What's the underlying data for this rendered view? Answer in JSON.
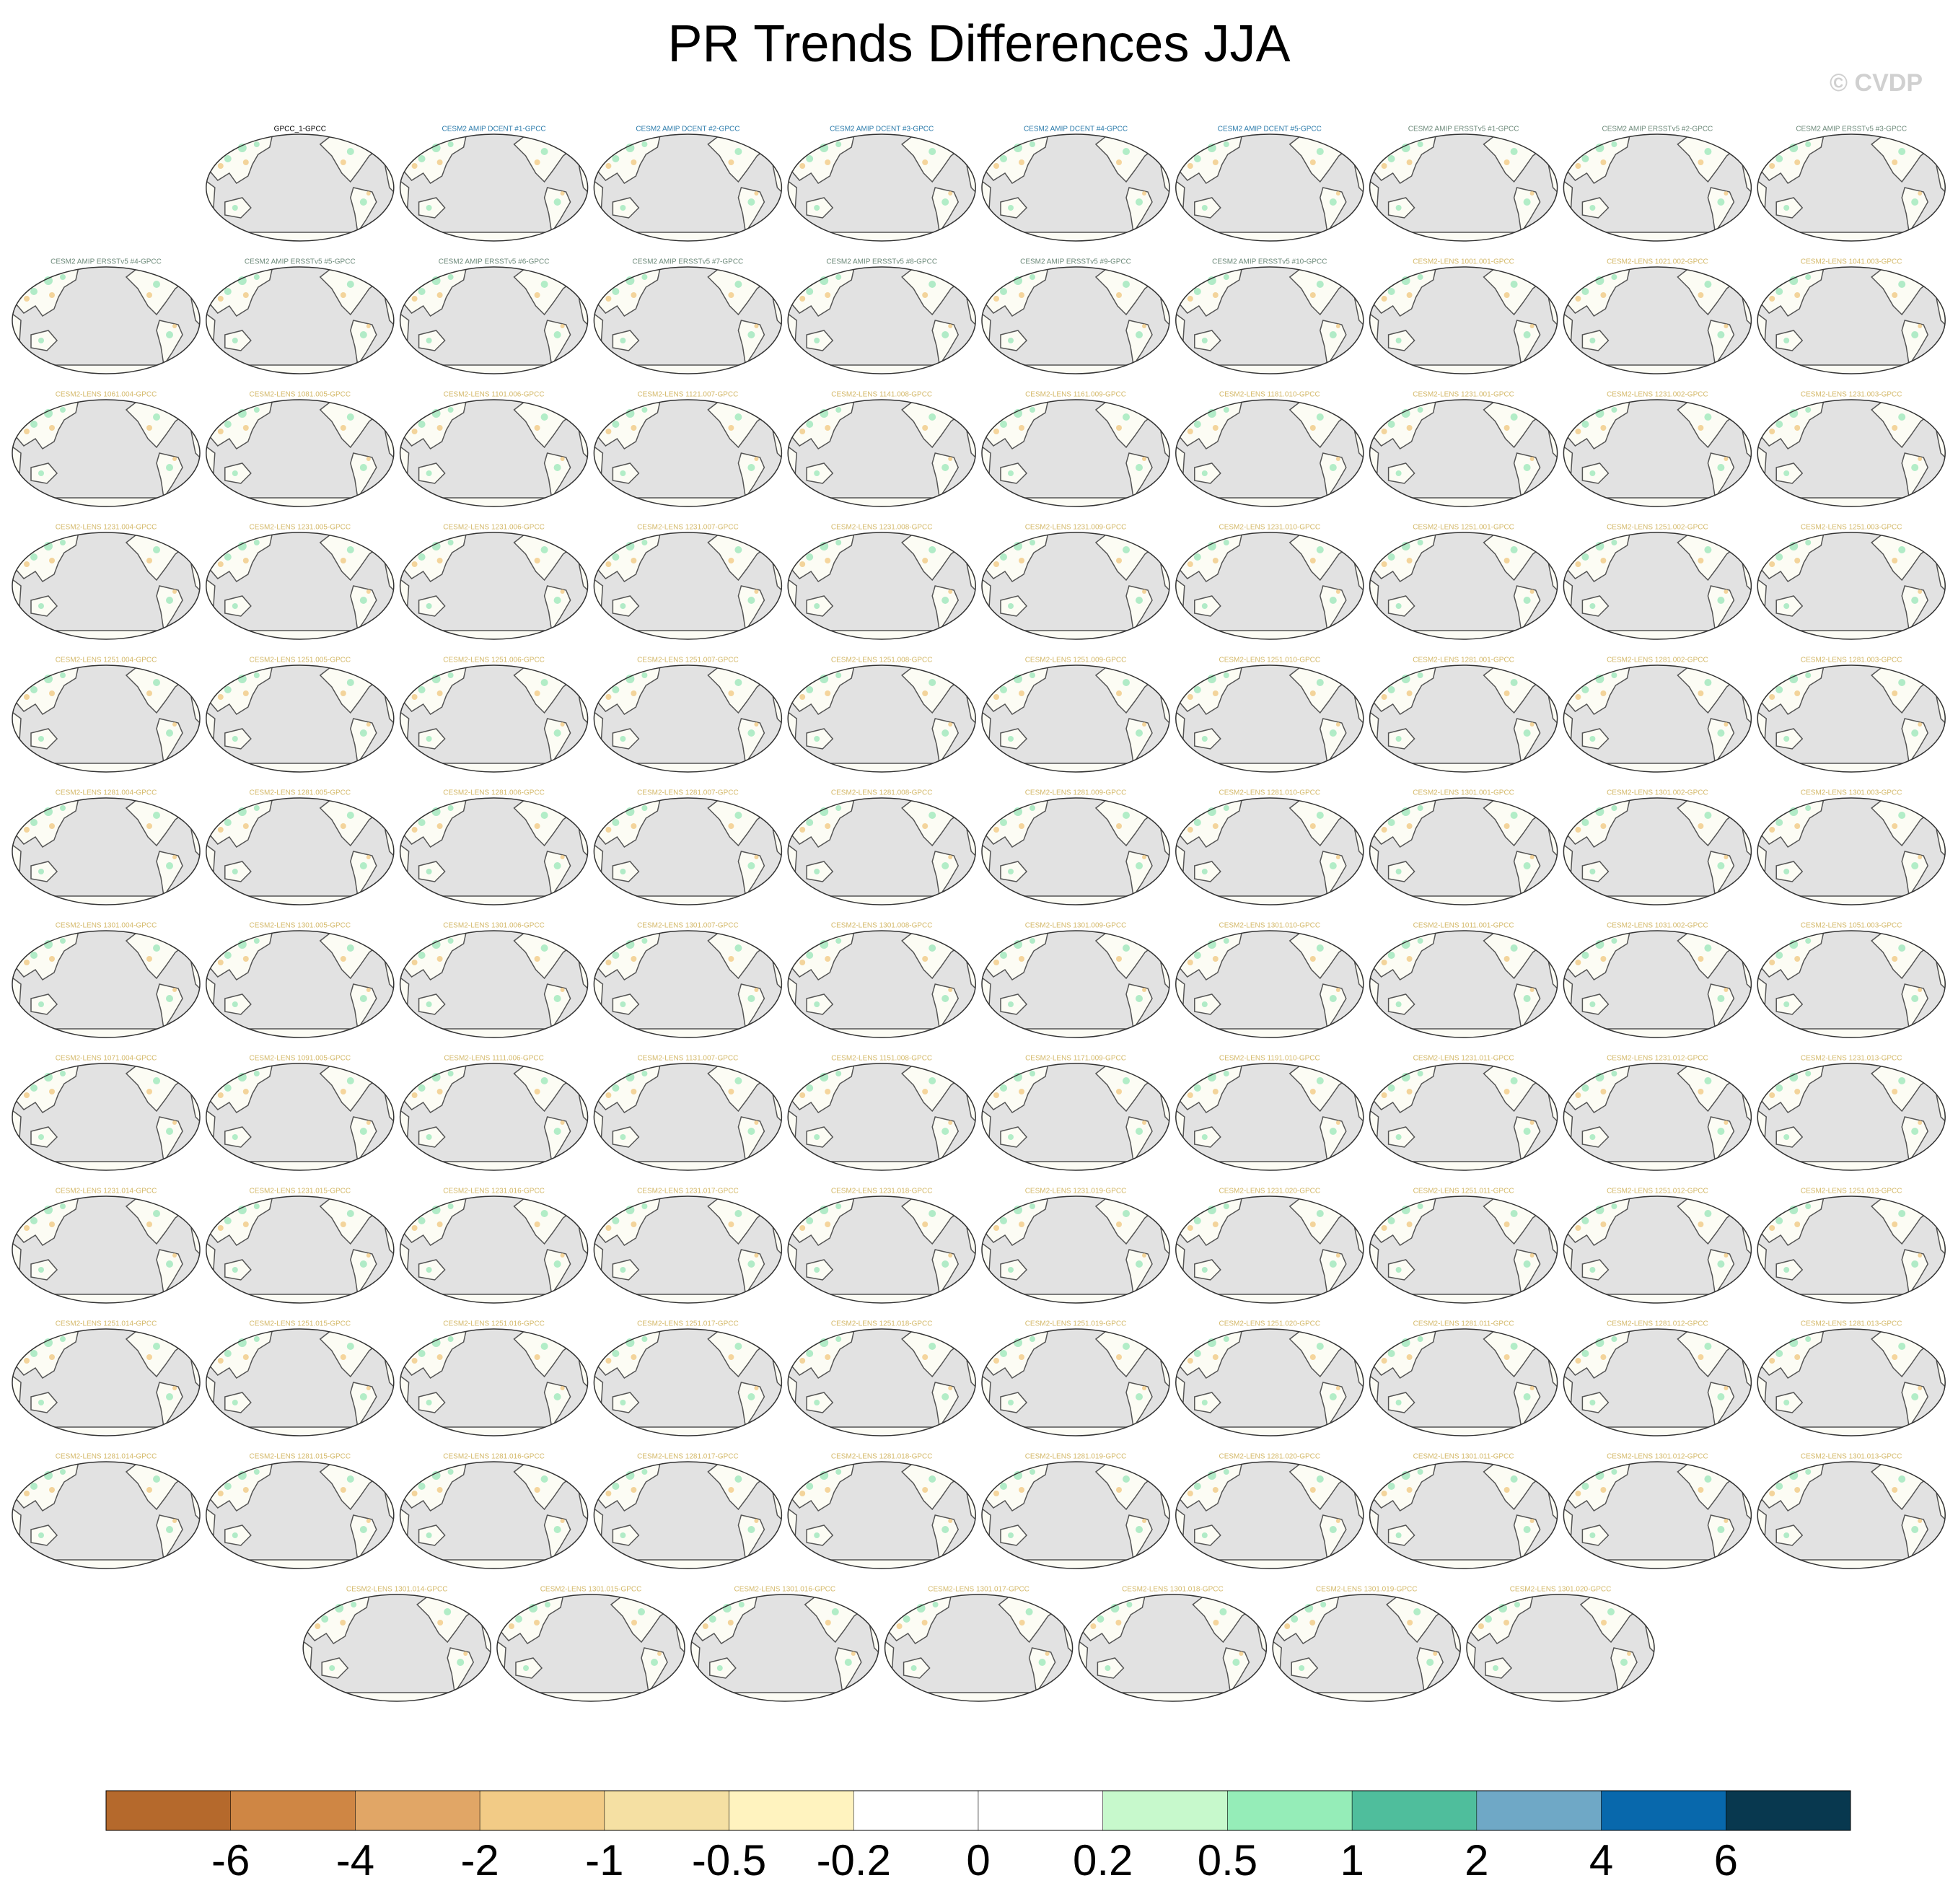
{
  "title": "PR Trends Differences JJA",
  "watermark": "© CVDP",
  "panel_groups": [
    {
      "color": "#000000",
      "titles": [
        "GPCC_1-GPCC"
      ]
    },
    {
      "color": "#2b7bab",
      "titles": [
        "CESM2 AMIP DCENT #1-GPCC",
        "CESM2 AMIP DCENT #2-GPCC",
        "CESM2 AMIP DCENT #3-GPCC",
        "CESM2 AMIP DCENT #4-GPCC",
        "CESM2 AMIP DCENT #5-GPCC"
      ]
    },
    {
      "color": "#6d8a7a",
      "titles": [
        "CESM2 AMIP ERSSTv5 #1-GPCC",
        "CESM2 AMIP ERSSTv5 #2-GPCC",
        "CESM2 AMIP ERSSTv5 #3-GPCC",
        "CESM2 AMIP ERSSTv5 #4-GPCC",
        "CESM2 AMIP ERSSTv5 #5-GPCC",
        "CESM2 AMIP ERSSTv5 #6-GPCC",
        "CESM2 AMIP ERSSTv5 #7-GPCC",
        "CESM2 AMIP ERSSTv5 #8-GPCC",
        "CESM2 AMIP ERSSTv5 #9-GPCC",
        "CESM2 AMIP ERSSTv5 #10-GPCC"
      ]
    },
    {
      "color": "#d4b96a",
      "titles": [
        "CESM2-LENS 1001.001-GPCC",
        "CESM2-LENS 1021.002-GPCC",
        "CESM2-LENS 1041.003-GPCC",
        "CESM2-LENS 1061.004-GPCC",
        "CESM2-LENS 1081.005-GPCC",
        "CESM2-LENS 1101.006-GPCC",
        "CESM2-LENS 1121.007-GPCC",
        "CESM2-LENS 1141.008-GPCC",
        "CESM2-LENS 1161.009-GPCC",
        "CESM2-LENS 1181.010-GPCC",
        "CESM2-LENS 1231.001-GPCC",
        "CESM2-LENS 1231.002-GPCC",
        "CESM2-LENS 1231.003-GPCC",
        "CESM2-LENS 1231.004-GPCC",
        "CESM2-LENS 1231.005-GPCC",
        "CESM2-LENS 1231.006-GPCC",
        "CESM2-LENS 1231.007-GPCC",
        "CESM2-LENS 1231.008-GPCC",
        "CESM2-LENS 1231.009-GPCC",
        "CESM2-LENS 1231.010-GPCC",
        "CESM2-LENS 1251.001-GPCC",
        "CESM2-LENS 1251.002-GPCC",
        "CESM2-LENS 1251.003-GPCC",
        "CESM2-LENS 1251.004-GPCC",
        "CESM2-LENS 1251.005-GPCC",
        "CESM2-LENS 1251.006-GPCC",
        "CESM2-LENS 1251.007-GPCC",
        "CESM2-LENS 1251.008-GPCC",
        "CESM2-LENS 1251.009-GPCC",
        "CESM2-LENS 1251.010-GPCC",
        "CESM2-LENS 1281.001-GPCC",
        "CESM2-LENS 1281.002-GPCC",
        "CESM2-LENS 1281.003-GPCC",
        "CESM2-LENS 1281.004-GPCC",
        "CESM2-LENS 1281.005-GPCC",
        "CESM2-LENS 1281.006-GPCC",
        "CESM2-LENS 1281.007-GPCC",
        "CESM2-LENS 1281.008-GPCC",
        "CESM2-LENS 1281.009-GPCC",
        "CESM2-LENS 1281.010-GPCC",
        "CESM2-LENS 1301.001-GPCC",
        "CESM2-LENS 1301.002-GPCC",
        "CESM2-LENS 1301.003-GPCC",
        "CESM2-LENS 1301.004-GPCC",
        "CESM2-LENS 1301.005-GPCC",
        "CESM2-LENS 1301.006-GPCC",
        "CESM2-LENS 1301.007-GPCC",
        "CESM2-LENS 1301.008-GPCC",
        "CESM2-LENS 1301.009-GPCC",
        "CESM2-LENS 1301.010-GPCC",
        "CESM2-LENS 1011.001-GPCC",
        "CESM2-LENS 1031.002-GPCC",
        "CESM2-LENS 1051.003-GPCC",
        "CESM2-LENS 1071.004-GPCC",
        "CESM2-LENS 1091.005-GPCC",
        "CESM2-LENS 1111.006-GPCC",
        "CESM2-LENS 1131.007-GPCC",
        "CESM2-LENS 1151.008-GPCC",
        "CESM2-LENS 1171.009-GPCC",
        "CESM2-LENS 1191.010-GPCC",
        "CESM2-LENS 1231.011-GPCC",
        "CESM2-LENS 1231.012-GPCC",
        "CESM2-LENS 1231.013-GPCC",
        "CESM2-LENS 1231.014-GPCC",
        "CESM2-LENS 1231.015-GPCC",
        "CESM2-LENS 1231.016-GPCC",
        "CESM2-LENS 1231.017-GPCC",
        "CESM2-LENS 1231.018-GPCC",
        "CESM2-LENS 1231.019-GPCC",
        "CESM2-LENS 1231.020-GPCC",
        "CESM2-LENS 1251.011-GPCC",
        "CESM2-LENS 1251.012-GPCC",
        "CESM2-LENS 1251.013-GPCC",
        "CESM2-LENS 1251.014-GPCC",
        "CESM2-LENS 1251.015-GPCC",
        "CESM2-LENS 1251.016-GPCC",
        "CESM2-LENS 1251.017-GPCC",
        "CESM2-LENS 1251.018-GPCC",
        "CESM2-LENS 1251.019-GPCC",
        "CESM2-LENS 1251.020-GPCC",
        "CESM2-LENS 1281.011-GPCC",
        "CESM2-LENS 1281.012-GPCC",
        "CESM2-LENS 1281.013-GPCC",
        "CESM2-LENS 1281.014-GPCC",
        "CESM2-LENS 1281.015-GPCC",
        "CESM2-LENS 1281.016-GPCC",
        "CESM2-LENS 1281.017-GPCC",
        "CESM2-LENS 1281.018-GPCC",
        "CESM2-LENS 1281.019-GPCC",
        "CESM2-LENS 1281.020-GPCC",
        "CESM2-LENS 1301.011-GPCC",
        "CESM2-LENS 1301.012-GPCC",
        "CESM2-LENS 1301.013-GPCC",
        "CESM2-LENS 1301.014-GPCC",
        "CESM2-LENS 1301.015-GPCC",
        "CESM2-LENS 1301.016-GPCC",
        "CESM2-LENS 1301.017-GPCC",
        "CESM2-LENS 1301.018-GPCC",
        "CESM2-LENS 1301.019-GPCC",
        "CESM2-LENS 1301.020-GPCC"
      ]
    }
  ],
  "colorbar": {
    "levels": [
      -6,
      -4,
      -2,
      -1,
      -0.5,
      -0.2,
      0,
      0.2,
      0.5,
      1,
      2,
      4,
      6
    ],
    "colors": [
      "#b5692c",
      "#cf8644",
      "#e1a666",
      "#f2cb86",
      "#f5e0a3",
      "#fff3bf",
      "#ffffff",
      "#ffffff",
      "#c7f9cc",
      "#95edb8",
      "#4fbe9c",
      "#6fa8c6",
      "#0868ac",
      "#08384f"
    ]
  }
}
